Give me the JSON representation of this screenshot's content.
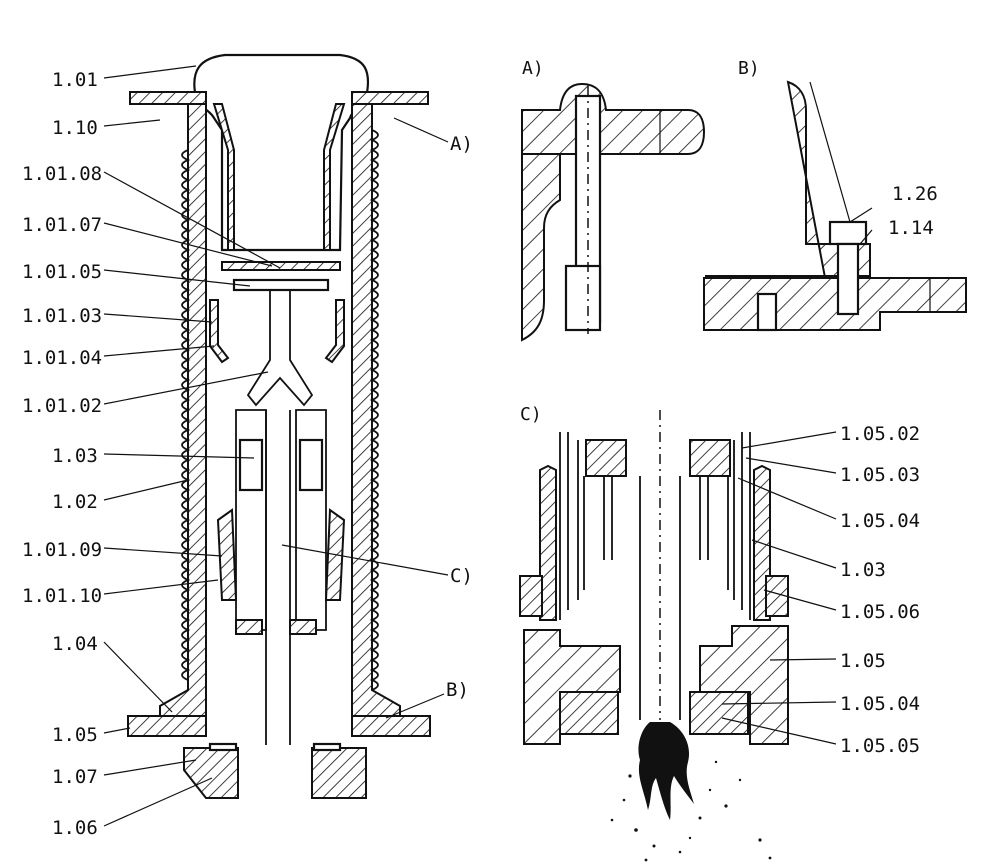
{
  "sections": {
    "a": "A)",
    "b": "B)",
    "c": "C)"
  },
  "main_labels": {
    "l1_01": "1.01",
    "l1_10": "1.10",
    "l1_01_08": "1.01.08",
    "l1_01_07": "1.01.07",
    "l1_01_05": "1.01.05",
    "l1_01_03": "1.01.03",
    "l1_01_04": "1.01.04",
    "l1_01_02": "1.01.02",
    "l1_03": "1.03",
    "l1_02": "1.02",
    "l1_01_09": "1.01.09",
    "l1_01_10": "1.01.10",
    "l1_04": "1.04",
    "l1_05": "1.05",
    "l1_07": "1.07",
    "l1_06": "1.06",
    "ref_a": "A)",
    "ref_b": "B)",
    "ref_c": "C)"
  },
  "detail_b_labels": {
    "l1_26": "1.26",
    "l1_14": "1.14"
  },
  "detail_c_labels": {
    "l1_05_02": "1.05.02",
    "l1_05_03": "1.05.03",
    "l1_05_04_top": "1.05.04",
    "l1_03": "1.03",
    "l1_05_06": "1.05.06",
    "l1_05": "1.05",
    "l1_05_04_bottom": "1.05.04",
    "l1_05_05": "1.05.05"
  }
}
